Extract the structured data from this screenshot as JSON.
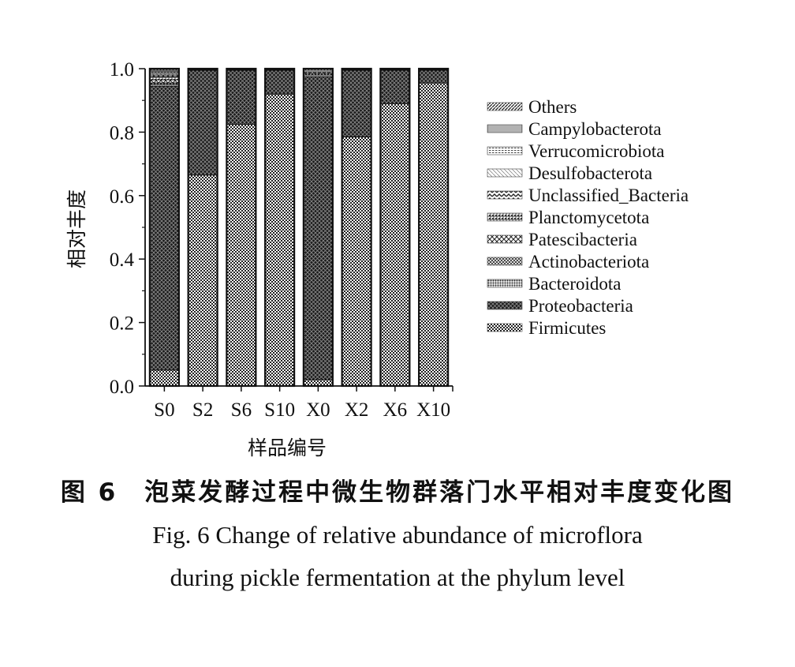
{
  "figure": {
    "caption_cn": "图 6　泡菜发酵过程中微生物群落门水平相对丰度变化图",
    "caption_en_line1": "Fig. 6 Change of relative abundance of microflora",
    "caption_en_line2": "during pickle fermentation at the phylum level"
  },
  "chart_data": {
    "type": "bar",
    "stacked": true,
    "title": "",
    "xlabel": "样品编号",
    "ylabel": "相对丰度",
    "ylim": [
      0,
      1.0
    ],
    "yticks": [
      "0.0",
      "0.2",
      "0.4",
      "0.6",
      "0.8",
      "1.0"
    ],
    "grid": false,
    "legend_position": "right",
    "categories": [
      "S0",
      "S2",
      "S6",
      "S10",
      "X0",
      "X2",
      "X6",
      "X10"
    ],
    "series": [
      {
        "name": "Firmicutes",
        "values": [
          0.05,
          0.665,
          0.825,
          0.92,
          0.02,
          0.785,
          0.89,
          0.955
        ]
      },
      {
        "name": "Proteobacteria",
        "values": [
          0.895,
          0.33,
          0.17,
          0.075,
          0.955,
          0.21,
          0.105,
          0.04
        ]
      },
      {
        "name": "Bacteroidota",
        "values": [
          0.005,
          0.002,
          0.002,
          0.002,
          0.005,
          0.002,
          0.002,
          0.002
        ]
      },
      {
        "name": "Actinobacteriota",
        "values": [
          0.005,
          0.001,
          0.001,
          0.001,
          0.005,
          0.001,
          0.001,
          0.001
        ]
      },
      {
        "name": "Patescibacteria",
        "values": [
          0.01,
          0,
          0,
          0,
          0.005,
          0,
          0,
          0
        ]
      },
      {
        "name": "Planctomycetota",
        "values": [
          0.01,
          0,
          0,
          0,
          0,
          0,
          0,
          0
        ]
      },
      {
        "name": "Unclassified_Bacteria",
        "values": [
          0.005,
          0,
          0,
          0,
          0,
          0,
          0,
          0
        ]
      },
      {
        "name": "Desulfobacterota",
        "values": [
          0.005,
          0,
          0,
          0,
          0,
          0,
          0,
          0
        ]
      },
      {
        "name": "Verrucomicrobiota",
        "values": [
          0.005,
          0,
          0,
          0,
          0.005,
          0,
          0,
          0
        ]
      },
      {
        "name": "Campylobacterota",
        "values": [
          0.005,
          0,
          0,
          0,
          0,
          0,
          0,
          0
        ]
      },
      {
        "name": "Others",
        "values": [
          0.005,
          0.002,
          0.002,
          0.002,
          0.005,
          0.002,
          0.002,
          0.002
        ]
      }
    ],
    "legend_order": [
      "Others",
      "Campylobacterota",
      "Verrucomicrobiota",
      "Desulfobacterota",
      "Unclassified_Bacteria",
      "Planctomycetota",
      "Patescibacteria",
      "Actinobacteriota",
      "Bacteroidota",
      "Proteobacteria",
      "Firmicutes"
    ]
  }
}
